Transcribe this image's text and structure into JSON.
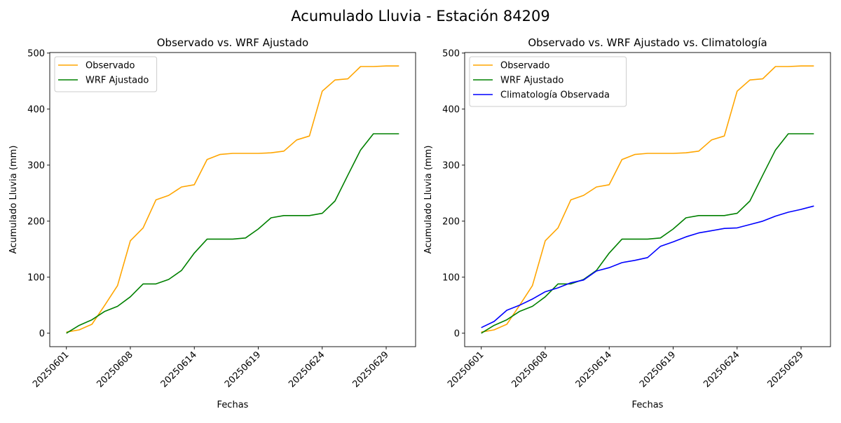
{
  "suptitle": "Acumulado Lluvia - Estación 84209",
  "chart_data": [
    {
      "type": "line",
      "title": "Observado vs. WRF Ajustado",
      "xlabel": "Fechas",
      "ylabel": "Acumulado Lluvia (mm)",
      "ylim": [
        -24,
        501
      ],
      "yticks": [
        0,
        100,
        200,
        300,
        400,
        500
      ],
      "xtick_labels": [
        {
          "index": 0,
          "label": "20250601"
        },
        {
          "index": 5,
          "label": "20250608"
        },
        {
          "index": 10,
          "label": "20250614"
        },
        {
          "index": 15,
          "label": "20250619"
        },
        {
          "index": 20,
          "label": "20250624"
        },
        {
          "index": 25,
          "label": "20250629"
        }
      ],
      "n_points": 27,
      "legend": "top-left",
      "series": [
        {
          "name": "Observado",
          "color": "#FFA500",
          "values": [
            2,
            6,
            16,
            50,
            85,
            165,
            188,
            238,
            246,
            261,
            265,
            310,
            319,
            321,
            321,
            321,
            322,
            325,
            345,
            352,
            432,
            452,
            454,
            476,
            476,
            477,
            477
          ]
        },
        {
          "name": "WRF Ajustado",
          "color": "#008000",
          "values": [
            0,
            14,
            24,
            39,
            48,
            65,
            88,
            88,
            96,
            112,
            143,
            168,
            168,
            168,
            170,
            186,
            206,
            210,
            210,
            210,
            214,
            236,
            282,
            327,
            356,
            356,
            356
          ]
        }
      ]
    },
    {
      "type": "line",
      "title": "Observado vs. WRF Ajustado vs. Climatología",
      "xlabel": "Fechas",
      "ylabel": "Acumulado Lluvia (mm)",
      "ylim": [
        -24,
        501
      ],
      "yticks": [
        0,
        100,
        200,
        300,
        400,
        500
      ],
      "xtick_labels": [
        {
          "index": 0,
          "label": "20250601"
        },
        {
          "index": 5,
          "label": "20250608"
        },
        {
          "index": 10,
          "label": "20250614"
        },
        {
          "index": 15,
          "label": "20250619"
        },
        {
          "index": 20,
          "label": "20250624"
        },
        {
          "index": 25,
          "label": "20250629"
        }
      ],
      "n_points": 27,
      "legend": "top-left",
      "series": [
        {
          "name": "Observado",
          "color": "#FFA500",
          "values": [
            2,
            6,
            16,
            50,
            85,
            165,
            188,
            238,
            246,
            261,
            265,
            310,
            319,
            321,
            321,
            321,
            322,
            325,
            345,
            352,
            432,
            452,
            454,
            476,
            476,
            477,
            477
          ]
        },
        {
          "name": "WRF Ajustado",
          "color": "#008000",
          "values": [
            0,
            14,
            24,
            39,
            48,
            65,
            88,
            88,
            96,
            112,
            143,
            168,
            168,
            168,
            170,
            186,
            206,
            210,
            210,
            210,
            214,
            236,
            282,
            327,
            356,
            356,
            356
          ]
        },
        {
          "name": "Climatología Observada",
          "color": "#0000FF",
          "values": [
            10,
            21,
            41,
            50,
            61,
            74,
            81,
            90,
            95,
            111,
            117,
            126,
            130,
            135,
            155,
            163,
            172,
            179,
            183,
            187,
            188,
            194,
            200,
            209,
            216,
            221,
            227
          ]
        }
      ]
    }
  ]
}
